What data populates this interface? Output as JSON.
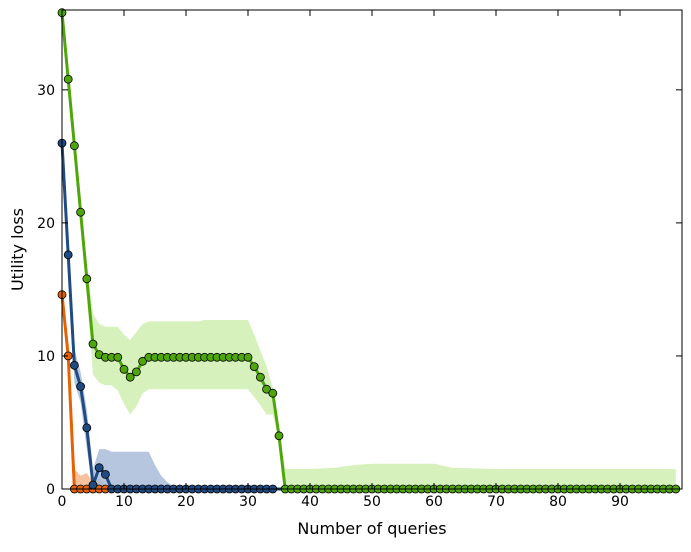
{
  "chart_data": {
    "type": "line",
    "title": "",
    "xlabel": "Number of queries",
    "ylabel": "Utility loss",
    "xlim": [
      0,
      100
    ],
    "ylim": [
      0,
      36
    ],
    "xticks": [
      0,
      10,
      20,
      30,
      40,
      50,
      60,
      70,
      80,
      90
    ],
    "yticks": [
      0,
      10,
      20,
      30
    ],
    "grid": false,
    "legend": "none",
    "series": [
      {
        "color": "#e66101",
        "band_color": "#f6b78c",
        "x": [
          0,
          1,
          2,
          3,
          4,
          5,
          6,
          7,
          8,
          9,
          10,
          11,
          12,
          13,
          14,
          15,
          16,
          17,
          18,
          19,
          20,
          21,
          22,
          23,
          24,
          25,
          26,
          27,
          28,
          29,
          30,
          31,
          32,
          33,
          34,
          35,
          36,
          37,
          38,
          39,
          40,
          41,
          42,
          43,
          44,
          45,
          46,
          47,
          48,
          49,
          50,
          51,
          52,
          53,
          54,
          55,
          56,
          57,
          58,
          59,
          60,
          61,
          62,
          63,
          64,
          65,
          66,
          67,
          68,
          69,
          70,
          71,
          72,
          73,
          74,
          75,
          76,
          77,
          78,
          79,
          80,
          81,
          82,
          83,
          84,
          85,
          86,
          87,
          88,
          89,
          90,
          91,
          92,
          93,
          94,
          95,
          96,
          97,
          98,
          99
        ],
        "y": [
          14.6,
          10.0,
          0,
          0,
          0,
          0,
          0,
          0,
          0,
          0,
          0,
          0,
          0,
          0,
          0,
          0,
          0,
          0,
          0,
          0,
          0,
          0,
          0,
          0,
          0,
          0,
          0,
          0,
          0,
          0,
          0,
          0,
          0,
          0,
          0,
          0,
          0,
          0,
          0,
          0,
          0,
          0,
          0,
          0,
          0,
          0,
          0,
          0,
          0,
          0,
          0,
          0,
          0,
          0,
          0,
          0,
          0,
          0,
          0,
          0,
          0,
          0,
          0,
          0,
          0,
          0,
          0,
          0,
          0,
          0,
          0,
          0,
          0,
          0,
          0,
          0,
          0,
          0,
          0,
          0,
          0,
          0,
          0,
          0,
          0,
          0,
          0,
          0,
          0,
          0,
          0,
          0,
          0,
          0,
          0,
          0,
          0,
          0,
          0,
          0
        ],
        "band_x": [
          0,
          1,
          2,
          3,
          4,
          5,
          6,
          7,
          8,
          9,
          99
        ],
        "band_upper": [
          14.6,
          10.5,
          1.5,
          1.0,
          1.2,
          0.5,
          0.8,
          0.3,
          0.1,
          0,
          0
        ],
        "band_lower": [
          14.6,
          9.5,
          0,
          0,
          0,
          0,
          0,
          0,
          0,
          0,
          0
        ],
        "marker_x": [
          0,
          1,
          2,
          3,
          4,
          5,
          6,
          7
        ]
      },
      {
        "color": "#1f4a82",
        "band_color": "#a8bcd8",
        "x": [
          0,
          1,
          2,
          3,
          4,
          5,
          6,
          7,
          8,
          9,
          10,
          11,
          12,
          13,
          14,
          15,
          16,
          17,
          18,
          19,
          20,
          21,
          22,
          23,
          24,
          25,
          26,
          27,
          28,
          29,
          30,
          31,
          32,
          33,
          34,
          35,
          36,
          37,
          38,
          39,
          40,
          41,
          42,
          43,
          44,
          45,
          46,
          47,
          48,
          49,
          50,
          51,
          52,
          53,
          54,
          55,
          56,
          57,
          58,
          59,
          60,
          61,
          62,
          63,
          64,
          65,
          66,
          67,
          68,
          69,
          70,
          71,
          72,
          73,
          74,
          75,
          76,
          77,
          78,
          79,
          80,
          81,
          82,
          83,
          84,
          85,
          86,
          87,
          88,
          89,
          90,
          91,
          92,
          93,
          94,
          95,
          96,
          97,
          98,
          99
        ],
        "y": [
          26.0,
          17.6,
          9.3,
          7.7,
          4.6,
          0.3,
          1.6,
          1.1,
          0,
          0,
          0,
          0,
          0,
          0,
          0,
          0,
          0,
          0,
          0,
          0,
          0,
          0,
          0,
          0,
          0,
          0,
          0,
          0,
          0,
          0,
          0,
          0,
          0,
          0,
          0,
          0,
          0,
          0,
          0,
          0,
          0,
          0,
          0,
          0,
          0,
          0,
          0,
          0,
          0,
          0,
          0,
          0,
          0,
          0,
          0,
          0,
          0,
          0,
          0,
          0,
          0,
          0,
          0,
          0,
          0,
          0,
          0,
          0,
          0,
          0,
          0,
          0,
          0,
          0,
          0,
          0,
          0,
          0,
          0,
          0,
          0,
          0,
          0,
          0,
          0,
          0,
          0,
          0,
          0,
          0,
          0,
          0,
          0,
          0,
          0,
          0,
          0,
          0,
          0,
          0
        ],
        "band_x": [
          0,
          1,
          2,
          3,
          4,
          5,
          6,
          7,
          8,
          9,
          10,
          11,
          12,
          13,
          14,
          15,
          16,
          17,
          18,
          19,
          20,
          99
        ],
        "band_upper": [
          26.0,
          18.0,
          10.5,
          8.8,
          6.0,
          1.5,
          3.0,
          3.0,
          2.8,
          2.8,
          2.8,
          2.8,
          2.8,
          2.8,
          2.8,
          1.8,
          1.0,
          0.5,
          0.2,
          0,
          0,
          0
        ],
        "band_lower": [
          26.0,
          17.0,
          8.0,
          6.5,
          3.0,
          0,
          0,
          0,
          0,
          0,
          0,
          0,
          0,
          0,
          0,
          0,
          0,
          0,
          0,
          0,
          0,
          0
        ],
        "marker_x": [
          0,
          1,
          2,
          3,
          4,
          5,
          6,
          7,
          8,
          9,
          10,
          11,
          12,
          13,
          14,
          15,
          16,
          17,
          18,
          19,
          20,
          21,
          22,
          23,
          24,
          25,
          26,
          27,
          28,
          29,
          30,
          31,
          32,
          33,
          34
        ]
      },
      {
        "color": "#4ea60a",
        "band_color": "#cfeeb0",
        "x": [
          0,
          1,
          2,
          3,
          4,
          5,
          6,
          7,
          8,
          9,
          10,
          11,
          12,
          13,
          14,
          15,
          16,
          17,
          18,
          19,
          20,
          21,
          22,
          23,
          24,
          25,
          26,
          27,
          28,
          29,
          30,
          31,
          32,
          33,
          34,
          35,
          36,
          37,
          38,
          39,
          40,
          41,
          42,
          43,
          44,
          45,
          46,
          47,
          48,
          49,
          50,
          51,
          52,
          53,
          54,
          55,
          56,
          57,
          58,
          59,
          60,
          61,
          62,
          63,
          64,
          65,
          66,
          67,
          68,
          69,
          70,
          71,
          72,
          73,
          74,
          75,
          76,
          77,
          78,
          79,
          80,
          81,
          82,
          83,
          84,
          85,
          86,
          87,
          88,
          89,
          90,
          91,
          92,
          93,
          94,
          95,
          96,
          97,
          98,
          99
        ],
        "y": [
          35.8,
          30.8,
          25.8,
          20.8,
          15.8,
          10.9,
          10.1,
          9.9,
          9.9,
          9.9,
          9.0,
          8.4,
          8.8,
          9.6,
          9.9,
          9.9,
          9.9,
          9.9,
          9.9,
          9.9,
          9.9,
          9.9,
          9.9,
          9.9,
          9.9,
          9.9,
          9.9,
          9.9,
          9.9,
          9.9,
          9.9,
          9.2,
          8.4,
          7.5,
          7.2,
          4.0,
          0,
          0,
          0,
          0,
          0,
          0,
          0,
          0,
          0,
          0,
          0,
          0,
          0,
          0,
          0,
          0,
          0,
          0,
          0,
          0,
          0,
          0,
          0,
          0,
          0,
          0,
          0,
          0,
          0,
          0,
          0,
          0,
          0,
          0,
          0,
          0,
          0,
          0,
          0,
          0,
          0,
          0,
          0,
          0,
          0,
          0,
          0,
          0,
          0,
          0,
          0,
          0,
          0,
          0,
          0,
          0,
          0,
          0,
          0,
          0,
          0,
          0,
          0,
          0
        ],
        "band_x": [
          0,
          1,
          2,
          3,
          4,
          5,
          6,
          7,
          8,
          9,
          10,
          11,
          12,
          13,
          14,
          15,
          16,
          17,
          18,
          19,
          20,
          21,
          22,
          23,
          24,
          25,
          26,
          27,
          28,
          29,
          30,
          31,
          32,
          33,
          34,
          35,
          36,
          40,
          44,
          47,
          50,
          55,
          60,
          63,
          70,
          80,
          90,
          99
        ],
        "band_upper": [
          35.8,
          31.0,
          26.2,
          21.5,
          17.0,
          13.2,
          12.4,
          12.2,
          12.2,
          12.2,
          11.6,
          11.2,
          11.8,
          12.4,
          12.6,
          12.6,
          12.6,
          12.6,
          12.6,
          12.6,
          12.6,
          12.6,
          12.6,
          12.7,
          12.7,
          12.7,
          12.7,
          12.7,
          12.7,
          12.7,
          12.7,
          11.6,
          10.4,
          9.2,
          7.6,
          4.2,
          1.5,
          1.5,
          1.6,
          1.8,
          1.9,
          1.9,
          1.9,
          1.6,
          1.5,
          1.5,
          1.5,
          1.5
        ],
        "band_lower": [
          35.8,
          30.6,
          25.4,
          20.1,
          14.6,
          8.6,
          8.0,
          7.8,
          7.8,
          7.4,
          6.4,
          5.6,
          6.2,
          7.2,
          7.5,
          7.5,
          7.5,
          7.5,
          7.5,
          7.5,
          7.5,
          7.5,
          7.5,
          7.5,
          7.5,
          7.5,
          7.5,
          7.5,
          7.5,
          7.5,
          7.5,
          6.9,
          6.3,
          5.6,
          5.6,
          3.8,
          0,
          0,
          0,
          0,
          0,
          0,
          0,
          0,
          0,
          0,
          0,
          0
        ],
        "marker_x": "all"
      }
    ]
  }
}
